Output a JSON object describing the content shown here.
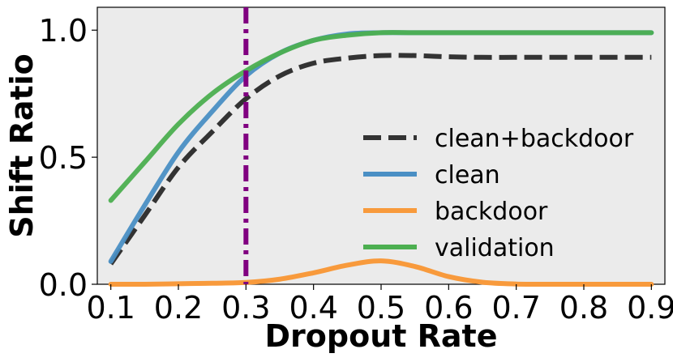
{
  "chart_data": {
    "type": "line",
    "xlabel": "Dropout Rate",
    "ylabel": "Shift Ratio",
    "xlim": [
      0.08,
      0.92
    ],
    "ylim": [
      0.0,
      1.09
    ],
    "xticks": [
      "0.1",
      "0.2",
      "0.3",
      "0.4",
      "0.5",
      "0.6",
      "0.7",
      "0.8",
      "0.9"
    ],
    "yticks": [
      "0.0",
      "0.5",
      "1.0"
    ],
    "grid": false,
    "background_color": "#ebebeb",
    "legend_position": "lower-right",
    "vline": {
      "x": 0.3,
      "color": "#800080",
      "style": "dash-dot"
    },
    "x": [
      0.1,
      0.15,
      0.2,
      0.25,
      0.3,
      0.35,
      0.4,
      0.45,
      0.5,
      0.55,
      0.6,
      0.65,
      0.7,
      0.75,
      0.8,
      0.85,
      0.9
    ],
    "series": [
      {
        "name": "clean+backdoor",
        "color": "#333333",
        "style": "dashed",
        "values": [
          0.08,
          0.27,
          0.46,
          0.6,
          0.73,
          0.82,
          0.87,
          0.89,
          0.9,
          0.9,
          0.895,
          0.893,
          0.893,
          0.893,
          0.893,
          0.893,
          0.893
        ]
      },
      {
        "name": "clean",
        "color": "#4a8fc4",
        "style": "solid",
        "values": [
          0.09,
          0.31,
          0.52,
          0.68,
          0.82,
          0.91,
          0.96,
          0.985,
          0.99,
          0.99,
          0.99,
          0.99,
          0.99,
          0.99,
          0.99,
          0.99,
          0.99
        ]
      },
      {
        "name": "backdoor",
        "color": "#f89a3c",
        "style": "solid",
        "values": [
          0.0,
          0.0,
          0.002,
          0.004,
          0.007,
          0.02,
          0.045,
          0.075,
          0.092,
          0.07,
          0.03,
          0.008,
          0.001,
          0.0,
          0.0,
          0.0,
          0.0
        ]
      },
      {
        "name": "validation",
        "color": "#4caf50",
        "style": "solid",
        "values": [
          0.33,
          0.48,
          0.63,
          0.75,
          0.84,
          0.91,
          0.96,
          0.98,
          0.99,
          0.99,
          0.99,
          0.99,
          0.99,
          0.99,
          0.99,
          0.99,
          0.99
        ]
      }
    ]
  }
}
